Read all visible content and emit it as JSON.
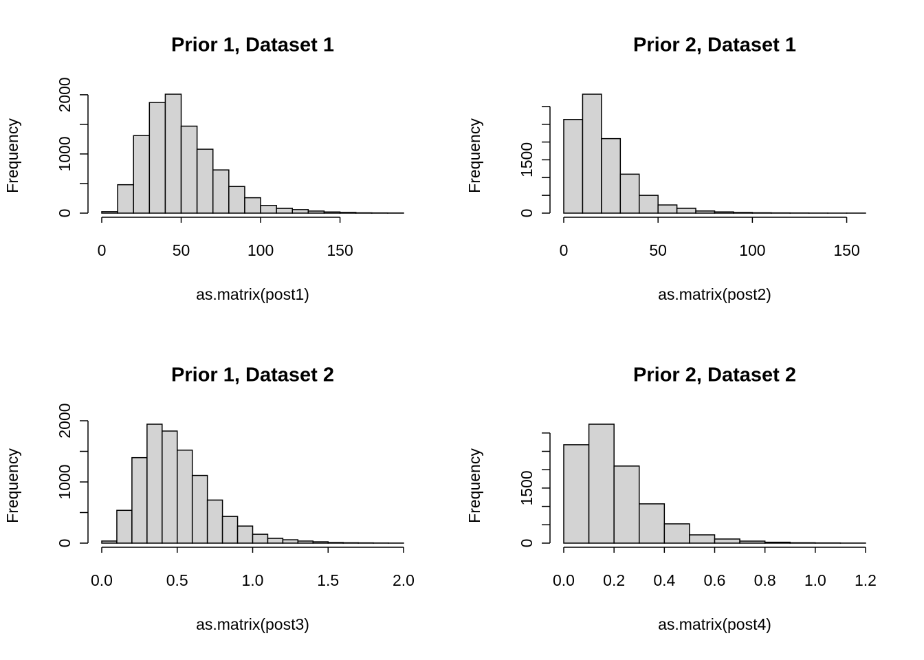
{
  "chart_data": [
    {
      "type": "histogram",
      "title": "Prior 1, Dataset 1",
      "xlabel": "as.matrix(post1)",
      "ylabel": "Frequency",
      "color": "#d3d3d3",
      "bins": [
        0,
        10,
        20,
        30,
        40,
        50,
        60,
        70,
        80,
        90,
        100,
        110,
        120,
        130,
        140,
        150,
        160,
        170,
        180,
        190
      ],
      "values": [
        25,
        480,
        1310,
        1870,
        2010,
        1470,
        1080,
        730,
        450,
        260,
        130,
        80,
        60,
        35,
        20,
        12,
        5,
        3,
        2
      ],
      "xlim": [
        0,
        190
      ],
      "xticks": [
        0,
        50,
        100,
        150
      ],
      "ylim": [
        0,
        2010
      ],
      "yticks": [
        0,
        {
          "value": 500,
          "label": null
        },
        1000,
        {
          "value": 1500,
          "label": null
        },
        2000
      ]
    },
    {
      "type": "histogram",
      "title": "Prior 2, Dataset 1",
      "xlabel": "as.matrix(post2)",
      "ylabel": "Frequency",
      "color": "#d3d3d3",
      "bins": [
        0,
        10,
        20,
        30,
        40,
        50,
        60,
        70,
        80,
        90,
        100,
        110,
        120,
        130,
        140,
        150,
        160
      ],
      "values": [
        2635,
        3346,
        2096,
        1096,
        500,
        230,
        135,
        60,
        35,
        18,
        10,
        6,
        4,
        2,
        1,
        1
      ],
      "xlim": [
        0,
        160
      ],
      "xticks": [
        0,
        50,
        100,
        150
      ],
      "ylim": [
        0,
        3346
      ],
      "yticks": [
        0,
        {
          "value": 500,
          "label": null
        },
        {
          "value": 1000,
          "label": null
        },
        1500,
        {
          "value": 2000,
          "label": null
        },
        {
          "value": 2500,
          "label": null
        },
        {
          "value": 3000,
          "label": null
        }
      ]
    },
    {
      "type": "histogram",
      "title": "Prior 1, Dataset 2",
      "xlabel": "as.matrix(post3)",
      "ylabel": "Frequency",
      "color": "#d3d3d3",
      "bins": [
        0,
        0.1,
        0.2,
        0.3,
        0.4,
        0.5,
        0.6,
        0.7,
        0.8,
        0.9,
        1,
        1.1,
        1.2,
        1.3,
        1.4,
        1.5,
        1.6,
        1.7,
        1.8,
        1.9,
        2
      ],
      "values": [
        34,
        536,
        1397,
        1944,
        1832,
        1520,
        1106,
        704,
        436,
        279,
        145,
        78,
        55,
        34,
        22,
        10,
        6,
        4,
        2,
        1
      ],
      "xlim": [
        0,
        2
      ],
      "xticks": [
        {
          "value": 0,
          "label": "0.0"
        },
        0.5,
        {
          "value": 1,
          "label": "1.0"
        },
        1.5,
        {
          "value": 2,
          "label": "2.0"
        }
      ],
      "ylim": [
        0,
        1944
      ],
      "yticks": [
        0,
        {
          "value": 500,
          "label": null
        },
        1000,
        {
          "value": 1500,
          "label": null
        },
        2000
      ]
    },
    {
      "type": "histogram",
      "title": "Prior 2, Dataset 2",
      "xlabel": "as.matrix(post4)",
      "ylabel": "Frequency",
      "color": "#d3d3d3",
      "bins": [
        0,
        0.1,
        0.2,
        0.3,
        0.4,
        0.5,
        0.6,
        0.7,
        0.8,
        0.9,
        1,
        1.1,
        1.2
      ],
      "values": [
        2680,
        3240,
        2100,
        1070,
        525,
        225,
        112,
        55,
        25,
        10,
        5,
        2
      ],
      "xlim": [
        0,
        1.2
      ],
      "xticks": [
        {
          "value": 0,
          "label": "0.0"
        },
        0.2,
        0.4,
        0.6,
        0.8,
        {
          "value": 1,
          "label": "1.0"
        },
        1.2
      ],
      "ylim": [
        0,
        3240
      ],
      "yticks": [
        0,
        {
          "value": 500,
          "label": null
        },
        {
          "value": 1000,
          "label": null
        },
        1500,
        {
          "value": 2000,
          "label": null
        },
        {
          "value": 2500,
          "label": null
        },
        {
          "value": 3000,
          "label": null
        }
      ]
    }
  ]
}
